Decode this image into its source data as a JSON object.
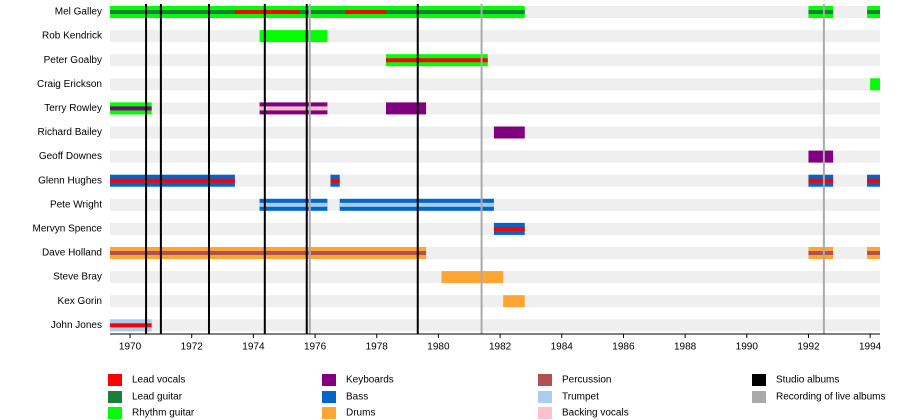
{
  "chart_data": {
    "type": "timeline",
    "xlim": [
      1969.35,
      1994.32
    ],
    "xticks": [
      1970,
      1972,
      1974,
      1976,
      1978,
      1980,
      1982,
      1984,
      1986,
      1988,
      1990,
      1992,
      1994
    ],
    "legend": [
      {
        "name": "Lead vocals",
        "color": "#ff0000"
      },
      {
        "name": "Lead guitar",
        "color": "#1a7f3c"
      },
      {
        "name": "Rhythm guitar",
        "color": "#00ff00"
      },
      {
        "name": "Keyboards",
        "color": "#800080"
      },
      {
        "name": "Bass",
        "color": "#0066cc"
      },
      {
        "name": "Drums",
        "color": "#ffa533"
      },
      {
        "name": "Percussion",
        "color": "#b05050"
      },
      {
        "name": "Trumpet",
        "color": "#aaccee"
      },
      {
        "name": "Backing vocals",
        "color": "#ffc0cb"
      },
      {
        "name": "Studio albums",
        "color": "#000000"
      },
      {
        "name": "Recording of live albums",
        "color": "#aaaaaa"
      }
    ],
    "studio_albums": [
      1970.52,
      1971.0,
      1972.56,
      1974.37,
      1975.73,
      1979.33
    ],
    "live_recordings": [
      1975.83,
      1981.4,
      1992.5
    ],
    "members": [
      {
        "name": "Mel Galley",
        "spans": [
          {
            "role": "Rhythm guitar",
            "layer": "outer",
            "start": 1969.35,
            "end": 1982.8
          },
          {
            "role": "Lead guitar",
            "layer": "inner",
            "start": 1969.35,
            "end": 1982.8
          },
          {
            "role": "Lead vocals",
            "layer": "inner",
            "start": 1973.4,
            "end": 1975.5
          },
          {
            "role": "Lead vocals",
            "layer": "inner",
            "start": 1977.0,
            "end": 1978.3
          },
          {
            "role": "Rhythm guitar",
            "layer": "outer",
            "start": 1992.0,
            "end": 1992.8
          },
          {
            "role": "Lead guitar",
            "layer": "inner",
            "start": 1992.0,
            "end": 1992.8
          },
          {
            "role": "Rhythm guitar",
            "layer": "outer",
            "start": 1993.9,
            "end": 1994.32
          },
          {
            "role": "Lead guitar",
            "layer": "inner",
            "start": 1993.9,
            "end": 1994.32
          }
        ]
      },
      {
        "name": "Rob Kendrick",
        "spans": [
          {
            "role": "Rhythm guitar",
            "layer": "outer",
            "start": 1974.2,
            "end": 1976.4
          }
        ]
      },
      {
        "name": "Peter Goalby",
        "spans": [
          {
            "role": "Rhythm guitar",
            "layer": "outer",
            "start": 1978.3,
            "end": 1981.6
          },
          {
            "role": "Lead vocals",
            "layer": "inner",
            "start": 1978.3,
            "end": 1981.6
          }
        ]
      },
      {
        "name": "Craig Erickson",
        "spans": [
          {
            "role": "Rhythm guitar",
            "layer": "outer",
            "start": 1994.0,
            "end": 1994.32
          }
        ]
      },
      {
        "name": "Terry Rowley",
        "spans": [
          {
            "role": "Rhythm guitar",
            "layer": "outer",
            "start": 1969.35,
            "end": 1970.7
          },
          {
            "role": "Keyboards",
            "layer": "inner",
            "start": 1969.35,
            "end": 1970.7
          },
          {
            "role": "Keyboards",
            "layer": "outer",
            "start": 1974.2,
            "end": 1976.4
          },
          {
            "role": "Backing vocals",
            "layer": "inner",
            "start": 1974.2,
            "end": 1976.4
          },
          {
            "role": "Keyboards",
            "layer": "outer",
            "start": 1978.3,
            "end": 1979.6
          }
        ]
      },
      {
        "name": "Richard Bailey",
        "spans": [
          {
            "role": "Keyboards",
            "layer": "outer",
            "start": 1981.8,
            "end": 1982.8
          }
        ]
      },
      {
        "name": "Geoff Downes",
        "spans": [
          {
            "role": "Keyboards",
            "layer": "outer",
            "start": 1992.0,
            "end": 1992.8
          }
        ]
      },
      {
        "name": "Glenn Hughes",
        "spans": [
          {
            "role": "Bass",
            "layer": "outer",
            "start": 1969.35,
            "end": 1973.4
          },
          {
            "role": "Lead vocals",
            "layer": "inner",
            "start": 1969.35,
            "end": 1973.4
          },
          {
            "role": "Bass",
            "layer": "outer",
            "start": 1976.5,
            "end": 1976.8
          },
          {
            "role": "Lead vocals",
            "layer": "inner",
            "start": 1976.5,
            "end": 1976.8
          },
          {
            "role": "Bass",
            "layer": "outer",
            "start": 1992.0,
            "end": 1992.8
          },
          {
            "role": "Lead vocals",
            "layer": "inner",
            "start": 1992.0,
            "end": 1992.8
          },
          {
            "role": "Bass",
            "layer": "outer",
            "start": 1993.9,
            "end": 1994.32
          },
          {
            "role": "Lead vocals",
            "layer": "inner",
            "start": 1993.9,
            "end": 1994.32
          }
        ]
      },
      {
        "name": "Pete Wright",
        "spans": [
          {
            "role": "Bass",
            "layer": "outer",
            "start": 1974.2,
            "end": 1976.4
          },
          {
            "role": "Trumpet",
            "layer": "inner",
            "start": 1974.2,
            "end": 1976.4
          },
          {
            "role": "Bass",
            "layer": "outer",
            "start": 1976.8,
            "end": 1981.8
          },
          {
            "role": "Trumpet",
            "layer": "inner",
            "start": 1976.8,
            "end": 1981.8
          }
        ]
      },
      {
        "name": "Mervyn Spence",
        "spans": [
          {
            "role": "Bass",
            "layer": "outer",
            "start": 1981.8,
            "end": 1982.8
          },
          {
            "role": "Lead vocals",
            "layer": "inner",
            "start": 1981.8,
            "end": 1982.8
          }
        ]
      },
      {
        "name": "Dave Holland",
        "spans": [
          {
            "role": "Drums",
            "layer": "outer",
            "start": 1969.35,
            "end": 1979.6
          },
          {
            "role": "Percussion",
            "layer": "inner",
            "start": 1969.35,
            "end": 1979.6
          },
          {
            "role": "Drums",
            "layer": "outer",
            "start": 1992.0,
            "end": 1992.8
          },
          {
            "role": "Percussion",
            "layer": "inner",
            "start": 1992.0,
            "end": 1992.8
          },
          {
            "role": "Drums",
            "layer": "outer",
            "start": 1993.9,
            "end": 1994.32
          },
          {
            "role": "Percussion",
            "layer": "inner",
            "start": 1993.9,
            "end": 1994.32
          }
        ]
      },
      {
        "name": "Steve Bray",
        "spans": [
          {
            "role": "Drums",
            "layer": "outer",
            "start": 1980.1,
            "end": 1982.1
          }
        ]
      },
      {
        "name": "Kex Gorin",
        "spans": [
          {
            "role": "Drums",
            "layer": "outer",
            "start": 1982.1,
            "end": 1982.8
          }
        ]
      },
      {
        "name": "John Jones",
        "spans": [
          {
            "role": "Trumpet",
            "layer": "outer",
            "start": 1969.35,
            "end": 1970.7
          },
          {
            "role": "Lead vocals",
            "layer": "inner",
            "start": 1969.35,
            "end": 1970.7
          }
        ]
      }
    ]
  }
}
